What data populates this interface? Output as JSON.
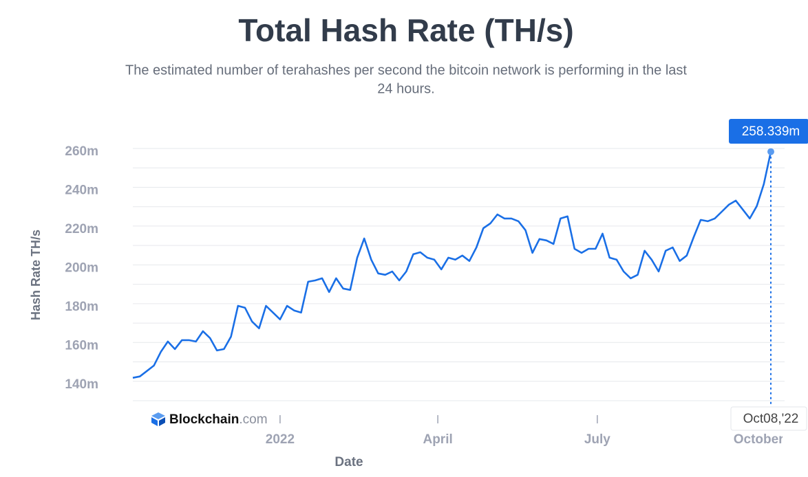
{
  "chart_data": {
    "type": "line",
    "title": "Total Hash Rate (TH/s)",
    "subtitle_lines": [
      "The estimated number of terahashes per second the bitcoin network is performing in the last",
      "24 hours."
    ],
    "y_label": "Hash Rate TH/s",
    "x_label": "Date",
    "brand": "Blockchain",
    "brand_suffix": ".com",
    "x": [
      "2021-10-09",
      "2021-10-13",
      "2021-10-17",
      "2021-10-21",
      "2021-10-25",
      "2021-10-29",
      "2021-11-02",
      "2021-11-06",
      "2021-11-10",
      "2021-11-14",
      "2021-11-18",
      "2021-11-22",
      "2021-11-26",
      "2021-11-30",
      "2021-12-04",
      "2021-12-08",
      "2021-12-12",
      "2021-12-16",
      "2021-12-20",
      "2021-12-24",
      "2021-12-28",
      "2022-01-01",
      "2022-01-05",
      "2022-01-09",
      "2022-01-13",
      "2022-01-17",
      "2022-01-21",
      "2022-01-25",
      "2022-01-29",
      "2022-02-02",
      "2022-02-06",
      "2022-02-10",
      "2022-02-14",
      "2022-02-18",
      "2022-02-22",
      "2022-02-26",
      "2022-03-02",
      "2022-03-06",
      "2022-03-10",
      "2022-03-14",
      "2022-03-18",
      "2022-03-22",
      "2022-03-26",
      "2022-03-30",
      "2022-04-03",
      "2022-04-07",
      "2022-04-11",
      "2022-04-15",
      "2022-04-19",
      "2022-04-23",
      "2022-04-27",
      "2022-05-01",
      "2022-05-05",
      "2022-05-09",
      "2022-05-13",
      "2022-05-17",
      "2022-05-21",
      "2022-05-25",
      "2022-05-29",
      "2022-06-02",
      "2022-06-06",
      "2022-06-10",
      "2022-06-14",
      "2022-06-18",
      "2022-06-22",
      "2022-06-26",
      "2022-06-30",
      "2022-07-04",
      "2022-07-08",
      "2022-07-12",
      "2022-07-16",
      "2022-07-20",
      "2022-07-24",
      "2022-07-28",
      "2022-08-01",
      "2022-08-05",
      "2022-08-09",
      "2022-08-13",
      "2022-08-17",
      "2022-08-21",
      "2022-08-25",
      "2022-08-29",
      "2022-09-02",
      "2022-09-06",
      "2022-09-10",
      "2022-09-14",
      "2022-09-18",
      "2022-09-22",
      "2022-09-26",
      "2022-09-30",
      "2022-10-04",
      "2022-10-08"
    ],
    "series": [
      {
        "name": "Hash Rate TH/s",
        "color": "#1a6fe6",
        "values": [
          141.8,
          142.5,
          145.3,
          148.1,
          155.2,
          160.5,
          156.6,
          161.2,
          161.2,
          160.5,
          165.8,
          162.3,
          155.9,
          156.6,
          163.0,
          178.9,
          177.9,
          170.8,
          167.3,
          178.9,
          175.4,
          171.9,
          178.9,
          176.5,
          175.4,
          191.3,
          192.0,
          193.1,
          186.0,
          193.1,
          187.8,
          187.1,
          203.7,
          213.6,
          202.7,
          195.6,
          194.9,
          196.6,
          192.0,
          196.6,
          205.5,
          206.5,
          203.7,
          202.7,
          197.7,
          203.7,
          202.7,
          204.8,
          202.0,
          209.0,
          218.9,
          221.4,
          226.0,
          223.9,
          223.9,
          222.5,
          217.9,
          206.2,
          213.3,
          212.6,
          210.8,
          223.9,
          225.0,
          208.3,
          206.2,
          208.3,
          208.3,
          216.1,
          203.7,
          202.7,
          196.6,
          193.1,
          194.9,
          207.3,
          202.7,
          196.6,
          207.3,
          209.0,
          202.0,
          204.8,
          214.3,
          223.2,
          222.5,
          223.9,
          227.4,
          231.0,
          233.1,
          228.5,
          223.9,
          230.3,
          241.6,
          258.339
        ],
        "value_labels": [
          null,
          null,
          null,
          null,
          null,
          null,
          null,
          null,
          null,
          null,
          null,
          null,
          null,
          null,
          null,
          null,
          null,
          null,
          null,
          null,
          null,
          null,
          null,
          null,
          null,
          null,
          null,
          null,
          null,
          null,
          null,
          null,
          null,
          null,
          null,
          null,
          null,
          null,
          null,
          null,
          null,
          null,
          null,
          null,
          null,
          null,
          null,
          null,
          null,
          null,
          null,
          null,
          null,
          null,
          null,
          null,
          null,
          null,
          null,
          null,
          null,
          null,
          null,
          null,
          null,
          null,
          null,
          null,
          null,
          null,
          null,
          null,
          null,
          null,
          null,
          null,
          null,
          null,
          null,
          null,
          null,
          null,
          null,
          null,
          null,
          null,
          null,
          null,
          null,
          null,
          null,
          "258.339m"
        ]
      }
    ],
    "cursor_label": "Oct08,'22",
    "xlim": [
      "2021-10-09",
      "2022-10-08"
    ],
    "xticks": [
      {
        "value": "2022-01-01",
        "label": "2022"
      },
      {
        "value": "2022-04-01",
        "label": "April"
      },
      {
        "value": "2022-07-01",
        "label": "July"
      },
      {
        "value": "2022-10-01",
        "label": "October"
      }
    ],
    "ylim": [
      130,
      260
    ],
    "yticks": [
      {
        "value": 140,
        "label": "140m"
      },
      {
        "value": 160,
        "label": "160m"
      },
      {
        "value": 180,
        "label": "180m"
      },
      {
        "value": 200,
        "label": "200m"
      },
      {
        "value": 220,
        "label": "220m"
      },
      {
        "value": 240,
        "label": "240m"
      },
      {
        "value": 260,
        "label": "260m"
      }
    ],
    "minor_yticks": [
      130,
      150,
      170,
      190,
      210,
      230,
      250
    ],
    "grid": true
  }
}
